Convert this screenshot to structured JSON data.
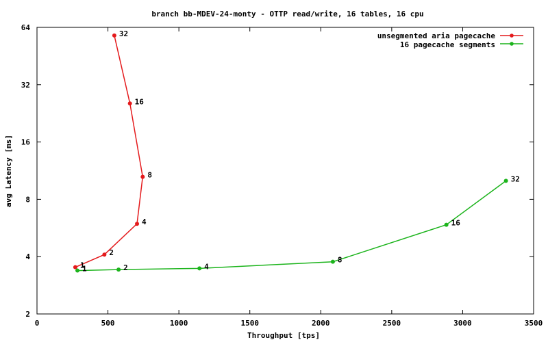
{
  "chart_data": {
    "type": "line",
    "title": "branch bb-MDEV-24-monty - OTTP read/write, 16 tables, 16 cpu",
    "xlabel": "Throughput [tps]",
    "ylabel": "avg Latency [ms]",
    "xlim": [
      0,
      3500
    ],
    "ylim": [
      2,
      64
    ],
    "y_scale": "log2",
    "grid": false,
    "legend_position": "top-right",
    "x_ticks": [
      0,
      500,
      1000,
      1500,
      2000,
      2500,
      3000,
      3500
    ],
    "y_ticks": [
      2,
      4,
      8,
      16,
      32,
      64
    ],
    "series": [
      {
        "name": "unsegmented aria pagecache",
        "color": "#e41a1c",
        "x": [
          270,
          475,
          705,
          745,
          655,
          545
        ],
        "y": [
          3.52,
          4.1,
          5.95,
          10.5,
          25.5,
          58
        ],
        "labels": [
          "1",
          "2",
          "4",
          "8",
          "16",
          "32"
        ]
      },
      {
        "name": "16 pagecache segments",
        "color": "#1cb41c",
        "x": [
          285,
          575,
          1145,
          2085,
          2885,
          3305
        ],
        "y": [
          3.38,
          3.42,
          3.47,
          3.76,
          5.88,
          10.0
        ],
        "labels": [
          "1",
          "2",
          "4",
          "8",
          "16",
          "32"
        ]
      }
    ]
  }
}
